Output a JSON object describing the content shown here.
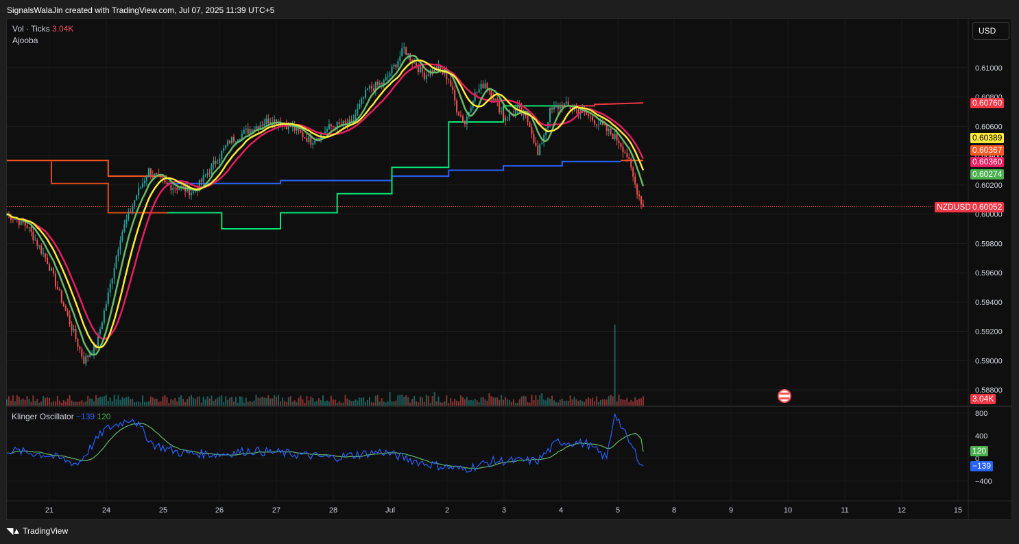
{
  "header": {
    "attribution": "SignalsWalaJin created with TradingView.com, Jul 07, 2025 11:39 UTC+5"
  },
  "legends": {
    "volume_label": "Vol · Ticks",
    "volume_value": "3.04K",
    "indicator_label": "Ajooba",
    "klinger_label": "Klinger Oscillator",
    "klinger_value": "−139",
    "klinger_signal": "120"
  },
  "currency_button": "USD",
  "price_tags": {
    "t1": "0.60760",
    "t2": "0.60389",
    "t3": "0.60367",
    "t4": "0.60360",
    "t5": "0.60274",
    "symbol": "NZDUSD",
    "last": "0.60052",
    "vol": "3.04K",
    "kl_signal": "120",
    "kl_value": "−139"
  },
  "footer": {
    "brand": "TradingView"
  },
  "colors": {
    "up": "#26a69a",
    "down": "#ef5350",
    "yellow": "#ffeb3b",
    "green_ma": "#66bb6a",
    "pink": "#e91e63",
    "orange": "#ff5722",
    "blue": "#2962ff",
    "channel": "#00e676",
    "last_price": "#f7525f",
    "usd_flag": "#ff5252"
  },
  "chart_data": [
    {
      "type": "candlestick",
      "symbol": "NZDUSD",
      "y_ticks": [
        "0.61000",
        "0.60800",
        "0.60600",
        "0.60400",
        "0.60200",
        "0.60000",
        "0.59800",
        "0.59600",
        "0.59400",
        "0.59200",
        "0.59000",
        "0.58800"
      ],
      "ylim": [
        0.5875,
        0.6125
      ],
      "x_ticks": [
        "21",
        "24",
        "25",
        "26",
        "27",
        "28",
        "Jul",
        "2",
        "3",
        "4",
        "5",
        "8",
        "9",
        "10",
        "11",
        "12",
        "15"
      ],
      "last_price": 0.60052,
      "indicator_lines": [
        {
          "name": "yellow",
          "last": 0.60389
        },
        {
          "name": "orange",
          "last": 0.60367
        },
        {
          "name": "pink",
          "last": 0.6036
        },
        {
          "name": "green",
          "last": 0.60274
        },
        {
          "name": "red-step",
          "last": 0.6076
        }
      ],
      "approx_path": [
        [
          0,
          0.6
        ],
        [
          10,
          0.5992
        ],
        [
          20,
          0.5968
        ],
        [
          30,
          0.593
        ],
        [
          38,
          0.59
        ],
        [
          44,
          0.591
        ],
        [
          50,
          0.5945
        ],
        [
          56,
          0.5985
        ],
        [
          64,
          0.6013
        ],
        [
          70,
          0.603
        ],
        [
          78,
          0.602
        ],
        [
          86,
          0.6018
        ],
        [
          92,
          0.6015
        ],
        [
          100,
          0.603
        ],
        [
          110,
          0.605
        ],
        [
          120,
          0.6058
        ],
        [
          130,
          0.6065
        ],
        [
          140,
          0.606
        ],
        [
          150,
          0.605
        ],
        [
          160,
          0.606
        ],
        [
          170,
          0.6062
        ],
        [
          178,
          0.6085
        ],
        [
          186,
          0.609
        ],
        [
          192,
          0.6103
        ],
        [
          196,
          0.6113
        ],
        [
          200,
          0.6105
        ],
        [
          206,
          0.6095
        ],
        [
          212,
          0.61
        ],
        [
          218,
          0.6093
        ],
        [
          222,
          0.6072
        ],
        [
          226,
          0.6062
        ],
        [
          230,
          0.608
        ],
        [
          236,
          0.609
        ],
        [
          242,
          0.6075
        ],
        [
          246,
          0.6065
        ],
        [
          252,
          0.6072
        ],
        [
          258,
          0.6062
        ],
        [
          262,
          0.604
        ],
        [
          268,
          0.607
        ],
        [
          274,
          0.6075
        ],
        [
          280,
          0.6072
        ],
        [
          286,
          0.6068
        ],
        [
          292,
          0.6062
        ],
        [
          298,
          0.6055
        ],
        [
          302,
          0.605
        ],
        [
          306,
          0.604
        ],
        [
          310,
          0.602
        ],
        [
          314,
          0.6005
        ]
      ]
    },
    {
      "type": "line",
      "name": "Klinger Oscillator",
      "y_ticks": [
        "800",
        "400",
        "0",
        "−400"
      ],
      "ylim": [
        -650,
        850
      ],
      "series": [
        {
          "name": "blue",
          "last": -139
        },
        {
          "name": "green",
          "last": 120
        }
      ]
    }
  ]
}
